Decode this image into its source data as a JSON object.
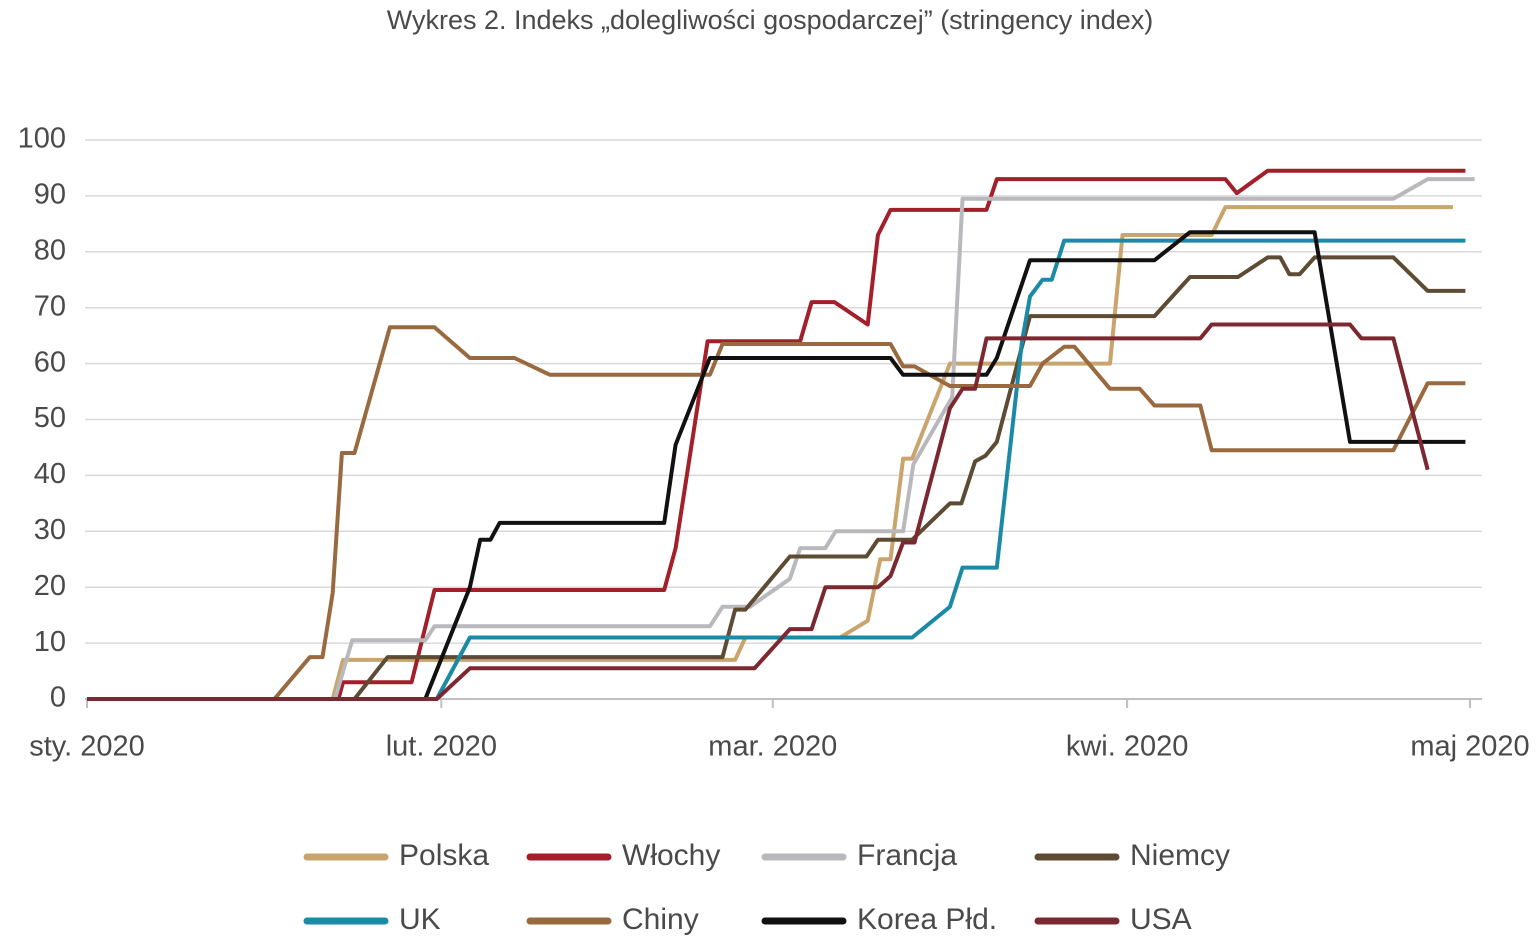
{
  "chart_data": {
    "type": "line",
    "title": "Wykres 2. Indeks „dolegliwości gospodarczej” (stringency index)",
    "xlim": [
      0,
      121
    ],
    "ylim": [
      0,
      100
    ],
    "xticks": [
      {
        "value": 0,
        "label": "sty. 2020"
      },
      {
        "value": 31,
        "label": "lut. 2020"
      },
      {
        "value": 60,
        "label": "mar. 2020"
      },
      {
        "value": 91,
        "label": "kwi. 2020"
      },
      {
        "value": 121,
        "label": "maj 2020"
      }
    ],
    "yticks": [
      0,
      10,
      20,
      30,
      40,
      50,
      60,
      70,
      80,
      90,
      100
    ],
    "grid": true,
    "series": [
      {
        "name": "Polska",
        "color": "#c9a46c",
        "x": [
          0,
          21.5,
          22.4,
          56.7,
          57.6,
          65.9,
          68.3,
          69.4,
          70.3,
          71.4,
          72.2,
          75.5,
          76.5,
          89.5,
          90.6,
          98.4,
          99.6,
          119.5
        ],
        "values": [
          0,
          0,
          7,
          7,
          11,
          11,
          14,
          25,
          25,
          43,
          43,
          60,
          60,
          60,
          83,
          83,
          88,
          88
        ]
      },
      {
        "name": "Włochy",
        "color": "#a31f2a",
        "x": [
          0,
          22,
          22.4,
          28.4,
          30.4,
          50.5,
          51.5,
          54.3,
          62.4,
          63.4,
          65.4,
          68.3,
          69.2,
          70.3,
          78.7,
          79.6,
          99.6,
          100.6,
          103.3,
          120.6
        ],
        "values": [
          0,
          0,
          3,
          3,
          19.5,
          19.5,
          27,
          64,
          64,
          71,
          71,
          67,
          83,
          87.5,
          87.5,
          93,
          93,
          90.5,
          94.5,
          94.5
        ]
      },
      {
        "name": "Francja",
        "color": "#b9b9bd",
        "x": [
          0,
          21.7,
          23.2,
          29.6,
          30.4,
          54.5,
          55.6,
          58,
          61.5,
          62.4,
          64.6,
          65.5,
          71.4,
          72.3,
          75.7,
          76.6,
          114.3,
          117.3,
          121.4
        ],
        "values": [
          0,
          0,
          10.5,
          10.5,
          13,
          13,
          16.5,
          16.5,
          21.5,
          27,
          27,
          30,
          30,
          42,
          54,
          89.5,
          89.5,
          93,
          93
        ]
      },
      {
        "name": "Niemcy",
        "color": "#5e4b33",
        "x": [
          0,
          23.4,
          26.3,
          55.6,
          56.7,
          57.6,
          61.5,
          68.2,
          69.2,
          72.2,
          75.5,
          76.5,
          77.7,
          78.6,
          79.6,
          82.5,
          93.4,
          96.5,
          100.7,
          103.3,
          104.4,
          105.2,
          106.1,
          107.4,
          114.3,
          117.3,
          120.6
        ],
        "values": [
          0,
          0,
          7.5,
          7.5,
          16,
          16,
          25.5,
          25.5,
          28.5,
          28.5,
          35,
          35,
          42.5,
          43.5,
          46,
          68.5,
          68.5,
          75.5,
          75.5,
          79,
          79,
          76,
          76,
          79,
          79,
          73,
          73
        ]
      },
      {
        "name": "UK",
        "color": "#1b8aa6",
        "x": [
          0,
          30.6,
          33.5,
          72.2,
          75.5,
          76.6,
          79.6,
          81.8,
          82.5,
          83.6,
          84.4,
          85.5,
          120.6
        ],
        "values": [
          0,
          0,
          11,
          11,
          16.5,
          23.5,
          23.5,
          64,
          72,
          75,
          75,
          82,
          82
        ]
      },
      {
        "name": "Chiny",
        "color": "#99693f",
        "x": [
          0,
          16.4,
          19.5,
          20.6,
          21.5,
          22.3,
          23.4,
          26.5,
          30.4,
          33.5,
          37.4,
          40.5,
          54.5,
          55.6,
          70.3,
          71.4,
          72.4,
          75.5,
          82.5,
          83.6,
          85.5,
          86.4,
          89.5,
          92.1,
          93.4,
          97.4,
          98.4,
          114.3,
          117.3,
          120.6
        ],
        "values": [
          0,
          0,
          7.5,
          7.5,
          19,
          44,
          44,
          66.5,
          66.5,
          61,
          61,
          58,
          58,
          63.5,
          63.5,
          59.5,
          59.5,
          56,
          56,
          60,
          63,
          63,
          55.5,
          55.5,
          52.5,
          52.5,
          44.5,
          44.5,
          56.5,
          56.5
        ]
      },
      {
        "name": "Korea Płd.",
        "color": "#111111",
        "x": [
          0,
          29.6,
          33.5,
          34.4,
          35.3,
          36.1,
          50.5,
          51.5,
          54.5,
          70.3,
          71.4,
          78.7,
          79.6,
          82.5,
          93.4,
          96.5,
          107.4,
          110.5,
          120.6
        ],
        "values": [
          0,
          0,
          20,
          28.5,
          28.5,
          31.5,
          31.5,
          45.5,
          61,
          61,
          58,
          58,
          61,
          78.5,
          78.5,
          83.5,
          83.5,
          46,
          46
        ]
      },
      {
        "name": "USA",
        "color": "#7b2831",
        "x": [
          0,
          30.6,
          33.5,
          58.4,
          61.5,
          63.4,
          64.6,
          69.2,
          70.3,
          71.4,
          72.4,
          75.5,
          76.6,
          77.7,
          78.7,
          97.4,
          98.4,
          110.5,
          111.5,
          114.3,
          117.3
        ],
        "values": [
          0,
          0,
          5.5,
          5.5,
          12.5,
          12.5,
          20,
          20,
          22,
          28,
          28,
          52,
          55.5,
          55.5,
          64.5,
          64.5,
          67,
          67,
          64.5,
          64.5,
          41
        ]
      }
    ]
  }
}
